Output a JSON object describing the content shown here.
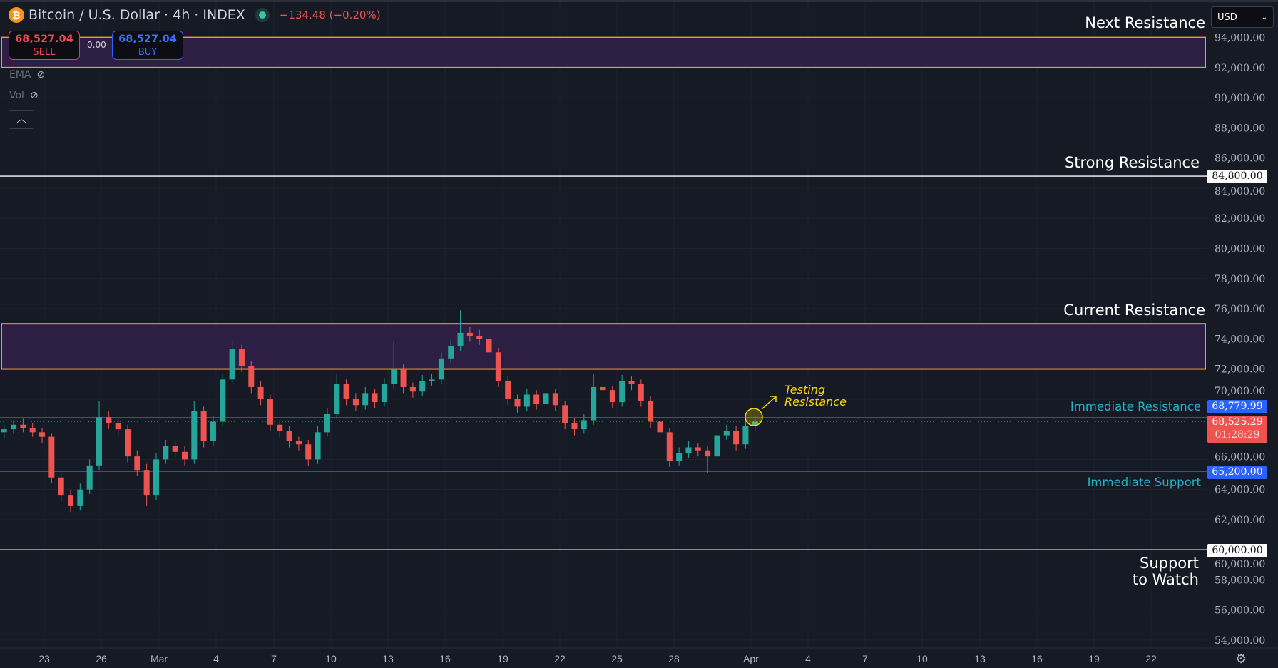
{
  "header": {
    "symbol": "Bitcoin / U.S. Dollar · 4h · INDEX",
    "change": "−134.48 (−0.20%)",
    "coin_glyph": "₿"
  },
  "trade": {
    "sell_price": "68,527.04",
    "sell_label": "SELL",
    "buy_price": "68,527.04",
    "buy_label": "BUY",
    "spread": "0.00"
  },
  "indicators": [
    {
      "label": "EMA"
    },
    {
      "label": "Vol"
    }
  ],
  "currency": "USD",
  "annotations": {
    "next_resistance": "Next Resistance",
    "strong_resistance": "Strong Resistance",
    "current_resistance": "Current Resistance",
    "immediate_resistance": "Immediate Resistance",
    "immediate_support": "Immediate Support",
    "support_watch_1": "Support",
    "support_watch_2": "to Watch",
    "testing_1": "Testing",
    "testing_2": "Resistance"
  },
  "badges": {
    "strong": "84,800.00",
    "immediate_resistance": "68,779.99",
    "last_price": "68,525.29",
    "countdown": "01:28:29",
    "immediate_support": "65,200.00",
    "support_watch": "60,000.00"
  },
  "colors": {
    "up": "#26a69a",
    "down": "#ef5350",
    "zone_border": "#f29a2e",
    "zone_fill": "#2d1f44",
    "level_blue": "#2e4fb8",
    "accent_blue": "#2962ff",
    "last_price": "#ef5350"
  },
  "chart_data": {
    "type": "candlestick",
    "title": "Bitcoin / U.S. Dollar · 4h · INDEX",
    "ylim": [
      53000,
      96000
    ],
    "y_ticks": [
      94000,
      92000,
      90000,
      88000,
      86000,
      84000,
      82000,
      80000,
      78000,
      76000,
      74000,
      72000,
      70000,
      66000,
      64000,
      62000,
      60000,
      58000,
      56000,
      54000
    ],
    "y_tick_labels": [
      "94,000.00",
      "92,000.00",
      "90,000.00",
      "88,000.00",
      "86,000.00",
      "84,000.00",
      "82,000.00",
      "80,000.00",
      "78,000.00",
      "76,000.00",
      "74,000.00",
      "72,000.00",
      "70,000.00",
      "66,000.00",
      "64,000.00",
      "62,000.00",
      "60,000.00",
      "58,000.00",
      "56,000.00",
      "54,000.00"
    ],
    "x_tick_labels": [
      "23",
      "26",
      "Mar",
      "4",
      "7",
      "10",
      "13",
      "16",
      "19",
      "22",
      "25",
      "28",
      "Apr",
      "4",
      "7",
      "10",
      "13",
      "16",
      "19",
      "22"
    ],
    "zones": [
      {
        "label": "Next Resistance",
        "from": 92000,
        "to": 94000
      },
      {
        "label": "Current Resistance",
        "from": 72000,
        "to": 75000
      }
    ],
    "levels": [
      {
        "label": "Strong Resistance",
        "value": 84800
      },
      {
        "label": "Immediate Resistance",
        "value": 68779.99
      },
      {
        "label": "Immediate Support",
        "value": 65200
      },
      {
        "label": "Support to Watch",
        "value": 60000
      }
    ],
    "last_price": 68525.29,
    "candles": [
      [
        67800,
        68300,
        67400,
        68000
      ],
      [
        68000,
        68600,
        67700,
        68300
      ],
      [
        68300,
        68700,
        67800,
        68100
      ],
      [
        68100,
        68400,
        67500,
        67800
      ],
      [
        67800,
        68100,
        67100,
        67500
      ],
      [
        67500,
        67700,
        64400,
        64800
      ],
      [
        64800,
        65200,
        63200,
        63600
      ],
      [
        63600,
        64000,
        62500,
        62900
      ],
      [
        62900,
        64400,
        62600,
        64000
      ],
      [
        64000,
        66000,
        63700,
        65600
      ],
      [
        65600,
        69900,
        65300,
        68800
      ],
      [
        68800,
        69200,
        68000,
        68400
      ],
      [
        68400,
        68700,
        67600,
        68000
      ],
      [
        68000,
        68300,
        65800,
        66200
      ],
      [
        66200,
        66600,
        64900,
        65300
      ],
      [
        65300,
        65700,
        62900,
        63600
      ],
      [
        63600,
        66400,
        63300,
        66000
      ],
      [
        66000,
        67300,
        65700,
        66900
      ],
      [
        66900,
        67200,
        66100,
        66500
      ],
      [
        66500,
        66900,
        65600,
        66000
      ],
      [
        66000,
        69900,
        65700,
        69200
      ],
      [
        69200,
        69500,
        66800,
        67200
      ],
      [
        67200,
        68900,
        66900,
        68500
      ],
      [
        68500,
        71700,
        68200,
        71300
      ],
      [
        71300,
        73900,
        71000,
        73300
      ],
      [
        73300,
        73600,
        71800,
        72200
      ],
      [
        72200,
        72500,
        70400,
        70800
      ],
      [
        70800,
        71200,
        69600,
        70000
      ],
      [
        70000,
        70300,
        67900,
        68300
      ],
      [
        68300,
        68600,
        67500,
        67900
      ],
      [
        67900,
        68200,
        66800,
        67200
      ],
      [
        67200,
        67500,
        66600,
        67000
      ],
      [
        67000,
        67300,
        65600,
        66000
      ],
      [
        66000,
        68200,
        65700,
        67800
      ],
      [
        67800,
        69400,
        67500,
        69000
      ],
      [
        69000,
        71700,
        68700,
        71000
      ],
      [
        71000,
        71300,
        69600,
        70000
      ],
      [
        70000,
        70400,
        69200,
        69600
      ],
      [
        69600,
        70800,
        69300,
        70400
      ],
      [
        70400,
        70700,
        69400,
        69800
      ],
      [
        69800,
        71400,
        69500,
        71000
      ],
      [
        71000,
        73800,
        70700,
        72000
      ],
      [
        72000,
        72300,
        70400,
        70800
      ],
      [
        70800,
        71100,
        70100,
        70500
      ],
      [
        70500,
        71600,
        70200,
        71200
      ],
      [
        71200,
        71700,
        70900,
        71300
      ],
      [
        71300,
        73100,
        71000,
        72700
      ],
      [
        72700,
        73900,
        72400,
        73500
      ],
      [
        73500,
        75900,
        73200,
        74400
      ],
      [
        74400,
        74800,
        73800,
        74200
      ],
      [
        74200,
        74600,
        73600,
        74000
      ],
      [
        74000,
        74400,
        72700,
        73100
      ],
      [
        73100,
        73400,
        70800,
        71200
      ],
      [
        71200,
        71500,
        69600,
        70000
      ],
      [
        70000,
        70300,
        69100,
        69500
      ],
      [
        69500,
        70700,
        69200,
        70300
      ],
      [
        70300,
        70600,
        69300,
        69700
      ],
      [
        69700,
        70800,
        69400,
        70400
      ],
      [
        70400,
        70700,
        69200,
        69600
      ],
      [
        69600,
        69900,
        68000,
        68400
      ],
      [
        68400,
        68700,
        67600,
        68000
      ],
      [
        68000,
        69000,
        67700,
        68600
      ],
      [
        68600,
        71700,
        68300,
        70800
      ],
      [
        70800,
        71200,
        70200,
        70600
      ],
      [
        70600,
        70900,
        69400,
        69800
      ],
      [
        69800,
        71600,
        69500,
        71200
      ],
      [
        71200,
        71500,
        70600,
        71000
      ],
      [
        71000,
        71300,
        69500,
        69900
      ],
      [
        69900,
        70200,
        68100,
        68500
      ],
      [
        68500,
        68800,
        67400,
        67800
      ],
      [
        67800,
        68100,
        65500,
        65900
      ],
      [
        65900,
        66800,
        65600,
        66400
      ],
      [
        66400,
        67200,
        66100,
        66800
      ],
      [
        66800,
        67100,
        66200,
        66600
      ],
      [
        66600,
        66900,
        65100,
        66200
      ],
      [
        66200,
        68000,
        65900,
        67600
      ],
      [
        67600,
        68300,
        67300,
        67900
      ],
      [
        67900,
        68200,
        66600,
        67000
      ],
      [
        67000,
        68600,
        66700,
        68200
      ],
      [
        68200,
        68900,
        67900,
        68500
      ]
    ]
  }
}
